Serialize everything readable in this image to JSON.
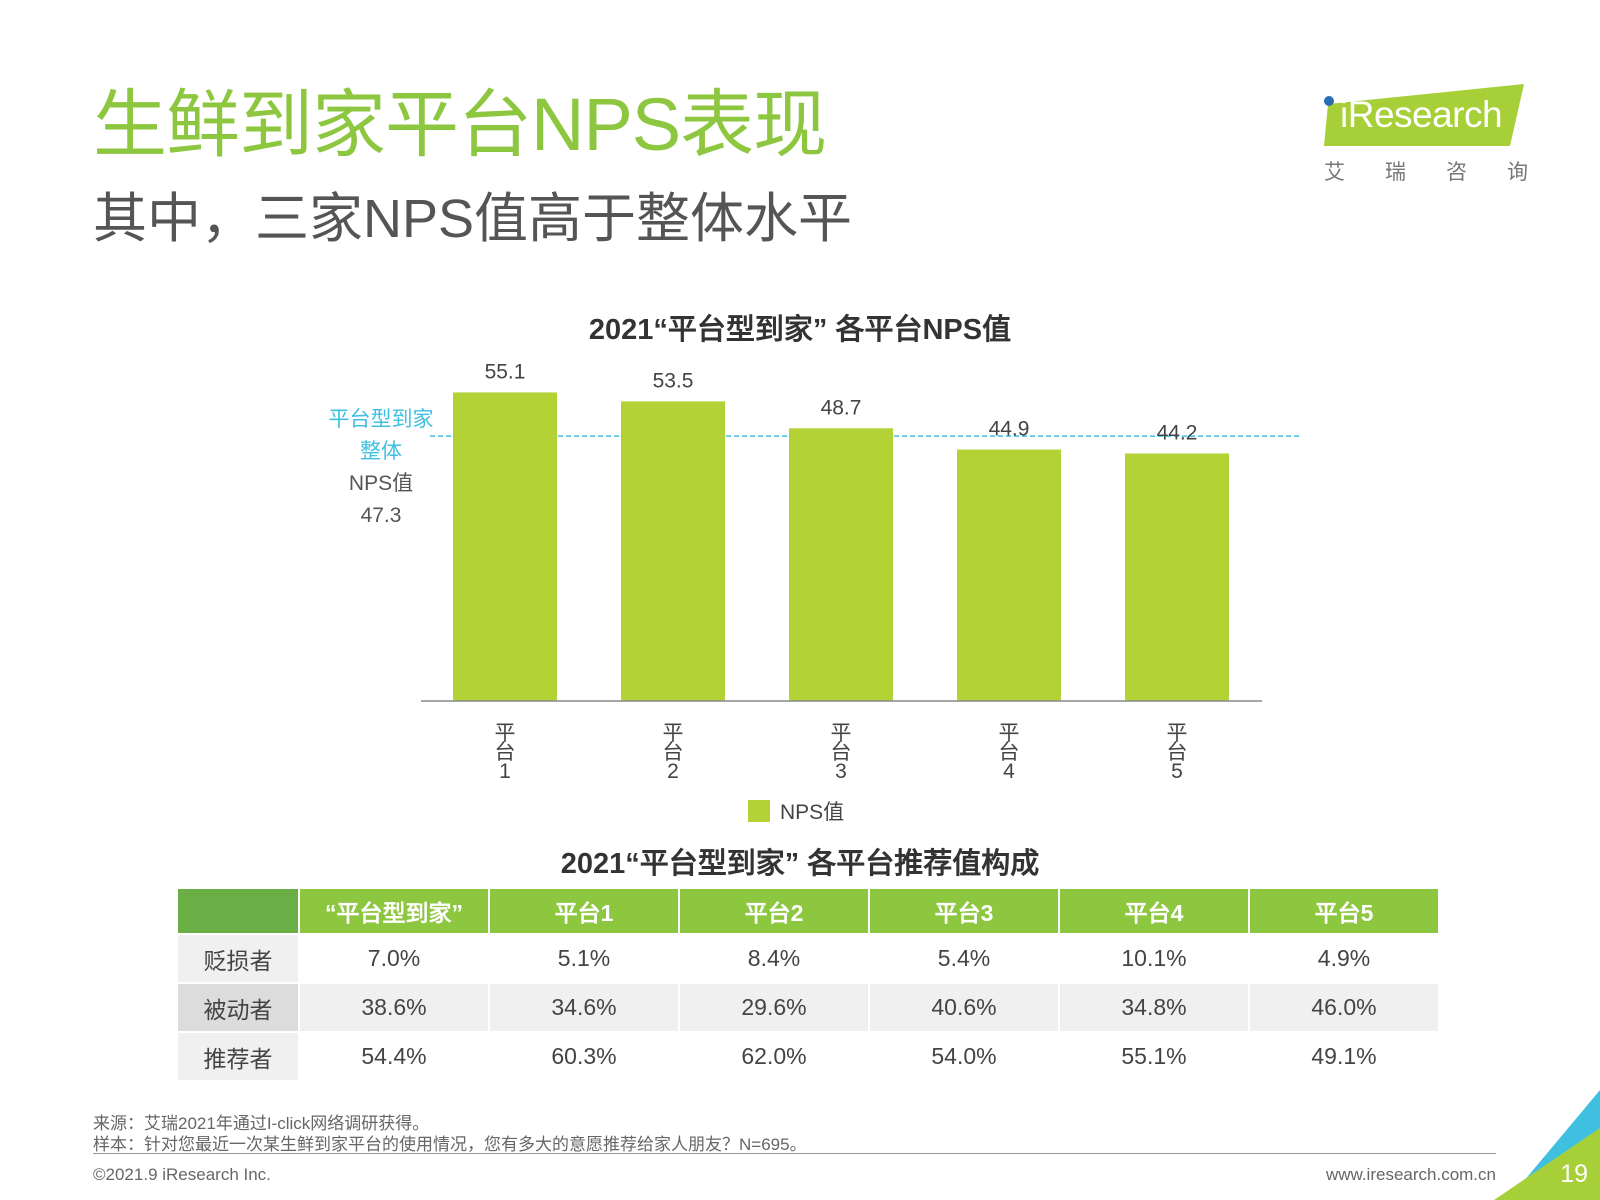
{
  "header": {
    "title": "生鲜到家平台NPS表现",
    "subtitle": "其中，三家NPS值高于整体水平"
  },
  "logo": {
    "word": "iResearch",
    "cn": "艾瑞咨询"
  },
  "chart_data": {
    "type": "bar",
    "title": "2021“平台型到家” 各平台NPS值",
    "categories": [
      "平台1",
      "平台2",
      "平台3",
      "平台4",
      "平台5"
    ],
    "series": [
      {
        "name": "NPS值",
        "values": [
          55.1,
          53.5,
          48.7,
          44.9,
          44.2
        ]
      }
    ],
    "value_labels": [
      "55.1",
      "53.5",
      "48.7",
      "44.9",
      "44.2"
    ],
    "ylim": [
      0,
      60
    ],
    "grid": false,
    "legend_position": "bottom-center",
    "reference_line": {
      "value": 47.3
    },
    "bar_color": "#b2d235",
    "line_color": "#3fc0e0"
  },
  "avg_annotation": {
    "line1": "平台型到家",
    "line2": "整体",
    "line3": "NPS值",
    "line4": "47.3"
  },
  "legend": {
    "label": "NPS值"
  },
  "table": {
    "title": "2021“平台型到家” 各平台推荐值构成",
    "corner": "",
    "headers": [
      "“平台型到家”",
      "平台1",
      "平台2",
      "平台3",
      "平台4",
      "平台5"
    ],
    "rows": [
      {
        "label": "贬损者",
        "values": [
          "7.0%",
          "5.1%",
          "8.4%",
          "5.4%",
          "10.1%",
          "4.9%"
        ]
      },
      {
        "label": "被动者",
        "values": [
          "38.6%",
          "34.6%",
          "29.6%",
          "40.6%",
          "34.8%",
          "46.0%"
        ]
      },
      {
        "label": "推荐者",
        "values": [
          "54.4%",
          "60.3%",
          "62.0%",
          "54.0%",
          "55.1%",
          "49.1%"
        ]
      }
    ]
  },
  "footer": {
    "source": "来源：艾瑞2021年通过I-click网络调研获得。",
    "sample": "样本：针对您最近一次某生鲜到家平台的使用情况，您有多大的意愿推荐给家人朋友？N=695。",
    "copyright": "©2021.9 iResearch Inc.",
    "website": "www.iresearch.com.cn",
    "page_number": "19"
  },
  "colors": {
    "title_green": "#8dc63f",
    "header_green": "#8dc63f",
    "corner_green": "#6aaf45",
    "accent_cyan": "#3fc0e0"
  }
}
